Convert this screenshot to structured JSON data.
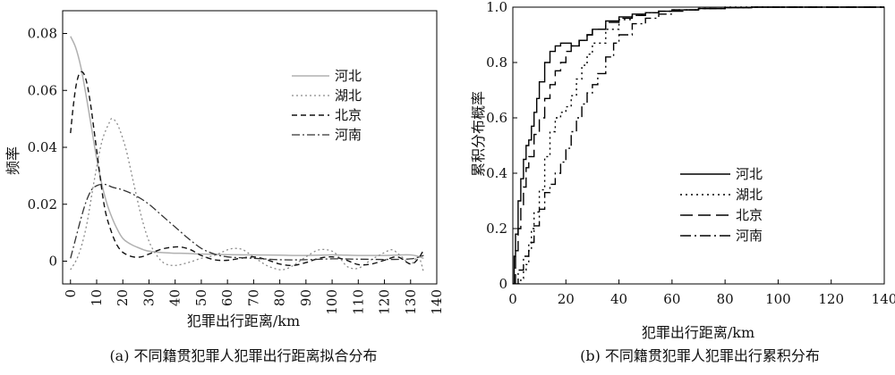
{
  "chart_data": [
    {
      "type": "line",
      "caption": "(a) 不同籍贯犯罪人犯罪出行距离拟合分布",
      "xlabel": "犯罪出行距离/km",
      "ylabel": "频率",
      "xlim": [
        -3,
        140
      ],
      "ylim": [
        -0.008,
        0.088
      ],
      "xticks": [
        0,
        10,
        20,
        30,
        40,
        50,
        60,
        70,
        80,
        90,
        100,
        110,
        120,
        130,
        140
      ],
      "yticks": [
        0,
        0.02,
        0.04,
        0.06,
        0.08
      ],
      "ytick_labels": [
        "0",
        "0.02",
        "0.04",
        "0.06",
        "0.08"
      ],
      "grid": false,
      "legend_position": "top-right",
      "series": [
        {
          "name": "河北",
          "color": "#b0b0b0",
          "dash": "",
          "width": 1.5,
          "x": [
            0,
            2,
            4,
            6,
            8,
            10,
            12,
            14,
            16,
            18,
            20,
            22,
            24,
            26,
            28,
            30,
            35,
            40,
            45,
            50,
            60,
            70,
            80,
            90,
            100,
            110,
            120,
            130,
            135
          ],
          "y": [
            0.079,
            0.075,
            0.068,
            0.058,
            0.047,
            0.036,
            0.027,
            0.02,
            0.015,
            0.011,
            0.008,
            0.0065,
            0.0055,
            0.0047,
            0.004,
            0.0035,
            0.003,
            0.0028,
            0.0027,
            0.0025,
            0.0023,
            0.0022,
            0.0021,
            0.002,
            0.0022,
            0.002,
            0.002,
            0.0022,
            0.001
          ]
        },
        {
          "name": "湖北",
          "color": "#8a8a8a",
          "dash": "2,3",
          "width": 1.3,
          "x": [
            0,
            3,
            6,
            9,
            12,
            15,
            16,
            18,
            21,
            24,
            27,
            30,
            33,
            36,
            40,
            45,
            50,
            55,
            60,
            63,
            66,
            70,
            75,
            80,
            83,
            86,
            90,
            95,
            100,
            103,
            106,
            110,
            115,
            120,
            123,
            126,
            130,
            133,
            135
          ],
          "y": [
            -0.003,
            0.002,
            0.012,
            0.028,
            0.042,
            0.049,
            0.05,
            0.048,
            0.04,
            0.028,
            0.016,
            0.007,
            0.002,
            -0.0008,
            -0.0015,
            -0.0005,
            0.001,
            0.002,
            0.004,
            0.0045,
            0.004,
            0.0015,
            -0.0015,
            -0.003,
            -0.0025,
            -0.001,
            0.0015,
            0.004,
            0.0035,
            0.001,
            -0.002,
            -0.0025,
            0.0005,
            0.003,
            0.004,
            0.002,
            -0.001,
            0.0015,
            -0.004
          ]
        },
        {
          "name": "北京",
          "color": "#111111",
          "dash": "6,4",
          "width": 1.4,
          "x": [
            0,
            1,
            2,
            3,
            4,
            5,
            6,
            7,
            8,
            9,
            10,
            11,
            12,
            13,
            14,
            15,
            17,
            19,
            21,
            24,
            27,
            30,
            34,
            38,
            42,
            46,
            50,
            55,
            60,
            65,
            70,
            75,
            80,
            85,
            90,
            95,
            100,
            105,
            110,
            115,
            120,
            125,
            130,
            133,
            135
          ],
          "y": [
            0.045,
            0.054,
            0.061,
            0.065,
            0.0665,
            0.066,
            0.0635,
            0.059,
            0.053,
            0.046,
            0.039,
            0.032,
            0.025,
            0.019,
            0.015,
            0.012,
            0.007,
            0.004,
            0.0025,
            0.0015,
            0.0015,
            0.0025,
            0.004,
            0.0048,
            0.005,
            0.004,
            0.002,
            0.0005,
            0.0003,
            0.001,
            0.0015,
            0.0005,
            -0.001,
            -0.0015,
            -0.0005,
            0.001,
            0.0015,
            0.0005,
            -0.0012,
            -0.001,
            0.0003,
            0.0015,
            -0.001,
            0.001,
            0.004
          ]
        },
        {
          "name": "河南",
          "color": "#333333",
          "dash": "9,3,2,3",
          "width": 1.3,
          "x": [
            0,
            2,
            4,
            6,
            8,
            10,
            12,
            14,
            16,
            20,
            25,
            30,
            35,
            40,
            45,
            50,
            55,
            60,
            70,
            80,
            90,
            100,
            110,
            120,
            130,
            135
          ],
          "y": [
            0.001,
            0.008,
            0.015,
            0.021,
            0.025,
            0.0265,
            0.027,
            0.0268,
            0.026,
            0.025,
            0.023,
            0.02,
            0.016,
            0.012,
            0.008,
            0.0045,
            0.0025,
            0.0015,
            0.001,
            0.0005,
            0.0005,
            0.0008,
            0.0007,
            0.0006,
            0.0008,
            0.002
          ]
        }
      ]
    },
    {
      "type": "line",
      "caption": "(b) 不同籍贯犯罪人犯罪出行累积分布",
      "xlabel": "犯罪出行距离/km",
      "ylabel": "累积分布概率",
      "xlim": [
        0,
        140
      ],
      "ylim": [
        0,
        1.0
      ],
      "xticks": [
        0,
        20,
        40,
        60,
        80,
        100,
        120,
        140
      ],
      "yticks": [
        0,
        0.2,
        0.4,
        0.6,
        0.8,
        1.0
      ],
      "ytick_labels": [
        "0",
        "0.2",
        "0.4",
        "0.6",
        "0.8",
        "1.0"
      ],
      "grid": false,
      "legend_position": "bottom-right",
      "series": [
        {
          "name": "河北",
          "color": "#000000",
          "dash": "",
          "width": 1.4,
          "x": [
            0,
            0.5,
            1,
            2,
            3,
            4,
            5,
            6,
            7,
            8,
            9,
            10,
            12,
            14,
            16,
            18,
            20,
            22,
            25,
            28,
            30,
            35,
            40,
            45,
            50,
            55,
            60,
            70,
            80,
            90,
            100,
            120,
            140
          ],
          "y": [
            0,
            0.1,
            0.18,
            0.3,
            0.38,
            0.45,
            0.5,
            0.52,
            0.57,
            0.62,
            0.67,
            0.73,
            0.8,
            0.84,
            0.86,
            0.87,
            0.87,
            0.86,
            0.88,
            0.9,
            0.92,
            0.95,
            0.965,
            0.975,
            0.98,
            0.985,
            0.99,
            0.995,
            0.998,
            1.0,
            1.0,
            1.0,
            1.0
          ]
        },
        {
          "name": "湖北",
          "color": "#000000",
          "dash": "2,4",
          "width": 1.4,
          "x": [
            0,
            3,
            4,
            5,
            6,
            7,
            8,
            10,
            12,
            14,
            16,
            18,
            20,
            22,
            24,
            26,
            28,
            30,
            35,
            40,
            45,
            50,
            55,
            60,
            70,
            80,
            90,
            100,
            120,
            140
          ],
          "y": [
            0,
            0.02,
            0.05,
            0.07,
            0.12,
            0.2,
            0.26,
            0.34,
            0.46,
            0.55,
            0.6,
            0.62,
            0.64,
            0.68,
            0.74,
            0.79,
            0.83,
            0.87,
            0.92,
            0.955,
            0.97,
            0.98,
            0.985,
            0.99,
            0.995,
            1.0,
            1.0,
            1.0,
            1.0,
            1.0
          ]
        },
        {
          "name": "北京",
          "color": "#000000",
          "dash": "14,6",
          "width": 1.4,
          "x": [
            0,
            1,
            2,
            3,
            4,
            5,
            6,
            8,
            10,
            12,
            14,
            16,
            18,
            20,
            22,
            25,
            28,
            30,
            35,
            40,
            45,
            50,
            55,
            60,
            70,
            80,
            90,
            100,
            120,
            140
          ],
          "y": [
            0,
            0.12,
            0.2,
            0.28,
            0.35,
            0.42,
            0.46,
            0.54,
            0.6,
            0.67,
            0.72,
            0.77,
            0.8,
            0.84,
            0.86,
            0.88,
            0.9,
            0.92,
            0.945,
            0.96,
            0.97,
            0.98,
            0.985,
            0.99,
            0.995,
            0.998,
            1.0,
            1.0,
            1.0,
            1.0
          ]
        },
        {
          "name": "河南",
          "color": "#000000",
          "dash": "12,4,2,4",
          "width": 1.4,
          "x": [
            0,
            2,
            4,
            6,
            8,
            10,
            12,
            14,
            16,
            18,
            20,
            22,
            24,
            26,
            28,
            30,
            32,
            35,
            38,
            40,
            45,
            50,
            55,
            60,
            65,
            70,
            80,
            90,
            100,
            120,
            140
          ],
          "y": [
            0,
            0.05,
            0.1,
            0.15,
            0.21,
            0.27,
            0.33,
            0.36,
            0.4,
            0.44,
            0.49,
            0.55,
            0.6,
            0.65,
            0.69,
            0.72,
            0.76,
            0.82,
            0.87,
            0.9,
            0.94,
            0.96,
            0.975,
            0.985,
            0.99,
            0.995,
            0.998,
            1.0,
            1.0,
            1.0,
            1.0
          ]
        }
      ]
    }
  ]
}
